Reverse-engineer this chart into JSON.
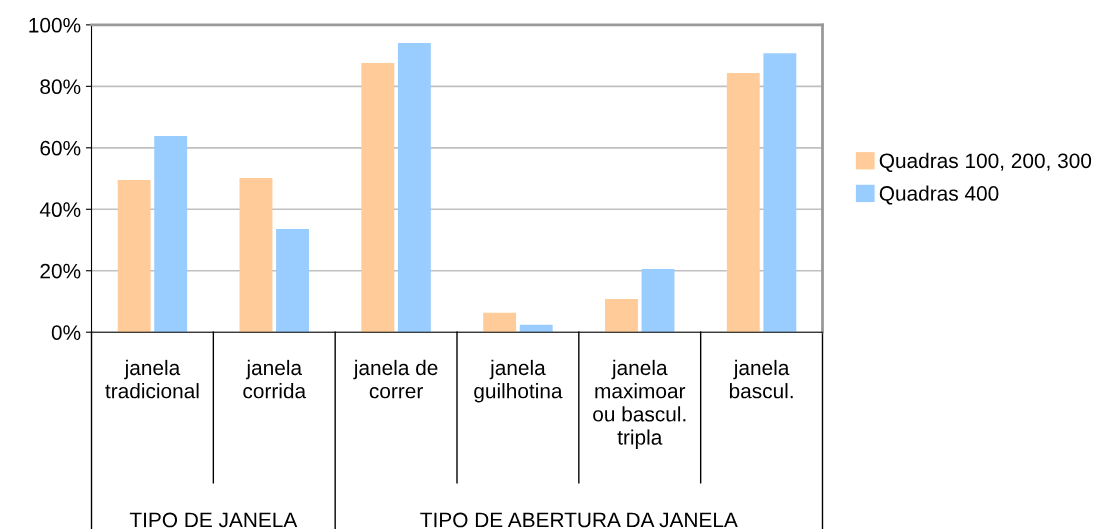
{
  "chart_data": {
    "type": "bar",
    "categories": [
      "janela\ntradicional",
      "janela\ncorrida",
      "janela de\ncorrer",
      "janela\nguilhotina",
      "janela\nmaximoar\nou bascul.\ntripla",
      "janela\nbascul."
    ],
    "series": [
      {
        "name": "Quadras 100, 200, 300",
        "color": "#ffcc99",
        "values": [
          49.5,
          50.2,
          87.6,
          6.3,
          10.8,
          84.3
        ]
      },
      {
        "name": "Quadras 400",
        "color": "#99ccff",
        "values": [
          63.8,
          33.6,
          94.1,
          2.4,
          20.6,
          90.8
        ]
      }
    ],
    "annotations": [
      "TIPO DE JANELA",
      "TIPO DE ABERTURA DA JANELA"
    ],
    "ylim": [
      0,
      100
    ],
    "yticks": [
      {
        "value": 0,
        "label": "0%"
      },
      {
        "value": 20,
        "label": "20%"
      },
      {
        "value": 40,
        "label": "40%"
      },
      {
        "value": 60,
        "label": "60%"
      },
      {
        "value": 80,
        "label": "80%"
      },
      {
        "value": 100,
        "label": "100%"
      }
    ],
    "grid": "y",
    "legend": "right"
  }
}
